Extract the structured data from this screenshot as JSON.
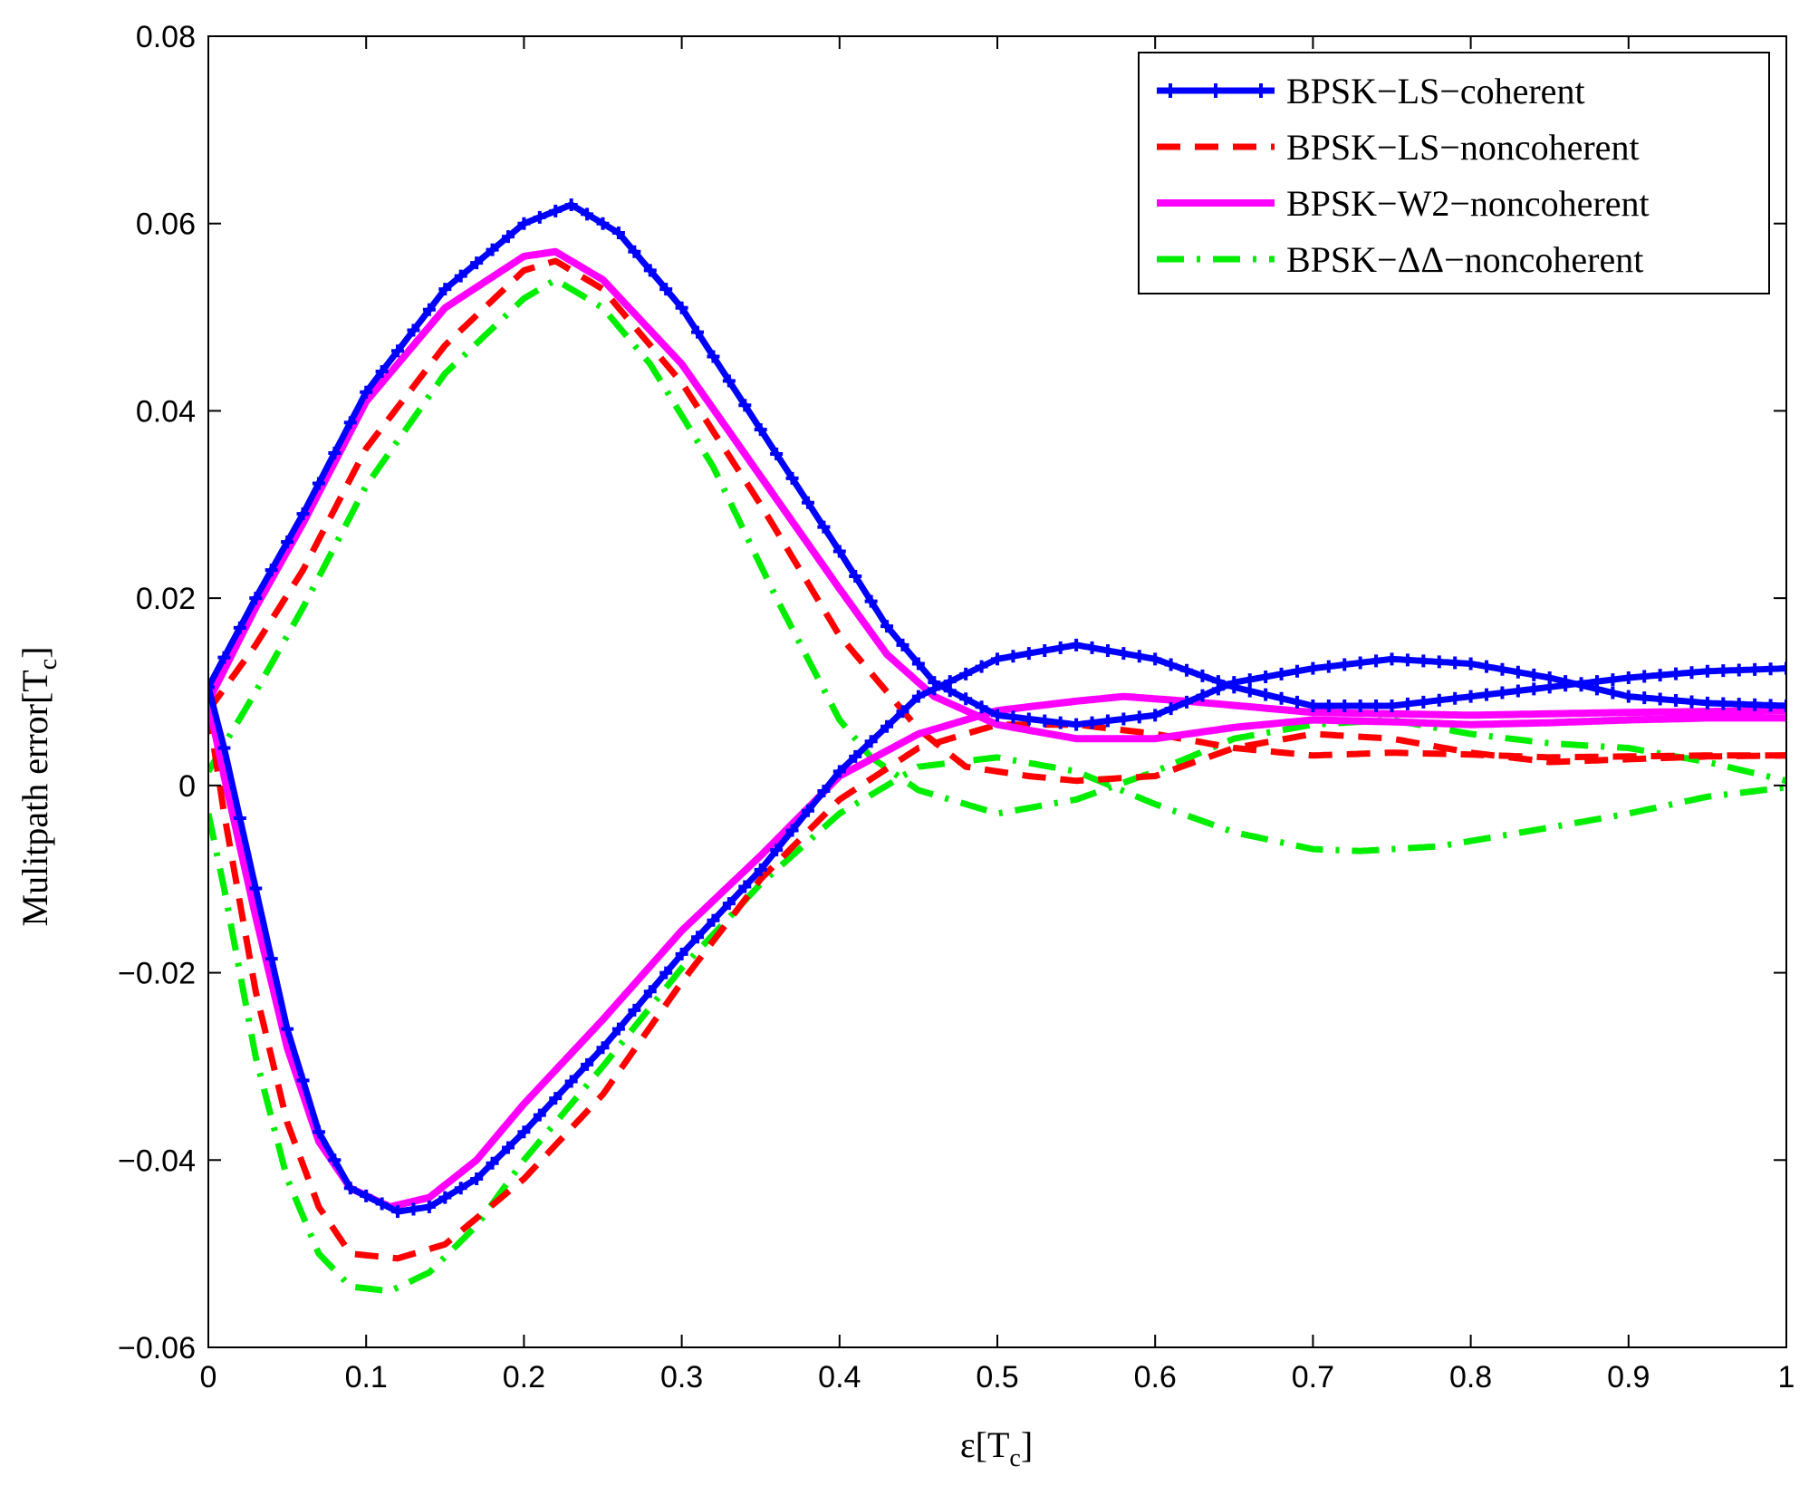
{
  "chart_data": {
    "type": "line",
    "title": "",
    "xlabel": "ε[T_c]",
    "xlabel_main": "ε[T",
    "xlabel_sub": "c",
    "xlabel_close": "]",
    "ylabel": "Mulitpath error[T_c]",
    "ylabel_main": "Mulitpath error[T",
    "ylabel_sub": "c",
    "ylabel_close": "]",
    "xlim": [
      0,
      1
    ],
    "ylim": [
      -0.06,
      0.08
    ],
    "x_ticks": [
      0,
      0.1,
      0.2,
      0.3,
      0.4,
      0.5,
      0.6,
      0.7,
      0.8,
      0.9,
      1
    ],
    "x_tick_labels": [
      "0",
      "0.1",
      "0.2",
      "0.3",
      "0.4",
      "0.5",
      "0.6",
      "0.7",
      "0.8",
      "0.9",
      "1"
    ],
    "y_ticks": [
      -0.06,
      -0.04,
      -0.02,
      0,
      0.02,
      0.04,
      0.06,
      0.08
    ],
    "y_tick_labels": [
      "−0.06",
      "−0.04",
      "−0.02",
      "0",
      "0.02",
      "0.04",
      "0.06",
      "0.08"
    ],
    "grid": false,
    "legend_position": "top-right",
    "series": [
      {
        "name": "BPSK−LS−coherent",
        "color": "#0000ff",
        "style": "solid-plus",
        "upper": [
          [
            0,
            0.0105
          ],
          [
            0.03,
            0.02
          ],
          [
            0.06,
            0.029
          ],
          [
            0.1,
            0.042
          ],
          [
            0.15,
            0.053
          ],
          [
            0.2,
            0.06
          ],
          [
            0.23,
            0.062
          ],
          [
            0.26,
            0.059
          ],
          [
            0.3,
            0.051
          ],
          [
            0.35,
            0.038
          ],
          [
            0.4,
            0.025
          ],
          [
            0.43,
            0.017
          ],
          [
            0.46,
            0.011
          ],
          [
            0.5,
            0.0075
          ],
          [
            0.55,
            0.0065
          ],
          [
            0.6,
            0.0075
          ],
          [
            0.65,
            0.011
          ],
          [
            0.7,
            0.0125
          ],
          [
            0.75,
            0.0135
          ],
          [
            0.8,
            0.013
          ],
          [
            0.85,
            0.0115
          ],
          [
            0.9,
            0.0095
          ],
          [
            0.95,
            0.0088
          ],
          [
            1,
            0.0085
          ]
        ],
        "lower": [
          [
            0,
            0.0105
          ],
          [
            0.01,
            0.004
          ],
          [
            0.03,
            -0.011
          ],
          [
            0.05,
            -0.026
          ],
          [
            0.07,
            -0.037
          ],
          [
            0.09,
            -0.043
          ],
          [
            0.12,
            -0.0455
          ],
          [
            0.14,
            -0.045
          ],
          [
            0.17,
            -0.042
          ],
          [
            0.2,
            -0.037
          ],
          [
            0.25,
            -0.028
          ],
          [
            0.3,
            -0.018
          ],
          [
            0.35,
            -0.009
          ],
          [
            0.4,
            0.0015
          ],
          [
            0.45,
            0.0095
          ],
          [
            0.5,
            0.0135
          ],
          [
            0.55,
            0.015
          ],
          [
            0.6,
            0.0135
          ],
          [
            0.65,
            0.0105
          ],
          [
            0.7,
            0.0085
          ],
          [
            0.75,
            0.0085
          ],
          [
            0.8,
            0.0095
          ],
          [
            0.85,
            0.0105
          ],
          [
            0.9,
            0.0115
          ],
          [
            0.95,
            0.0122
          ],
          [
            1,
            0.0125
          ]
        ]
      },
      {
        "name": "BPSK−LS−noncoherent",
        "color": "#ff0000",
        "style": "dashed",
        "upper": [
          [
            0,
            0.008
          ],
          [
            0.03,
            0.015
          ],
          [
            0.06,
            0.023
          ],
          [
            0.1,
            0.036
          ],
          [
            0.15,
            0.047
          ],
          [
            0.2,
            0.055
          ],
          [
            0.22,
            0.056
          ],
          [
            0.25,
            0.053
          ],
          [
            0.3,
            0.043
          ],
          [
            0.35,
            0.03
          ],
          [
            0.4,
            0.016
          ],
          [
            0.45,
            0.006
          ],
          [
            0.48,
            0.002
          ],
          [
            0.52,
            0.001
          ],
          [
            0.55,
            0.0005
          ],
          [
            0.6,
            0.001
          ],
          [
            0.65,
            0.004
          ],
          [
            0.7,
            0.0055
          ],
          [
            0.75,
            0.005
          ],
          [
            0.8,
            0.0035
          ],
          [
            0.85,
            0.0025
          ],
          [
            0.9,
            0.0028
          ],
          [
            0.95,
            0.0031
          ],
          [
            1,
            0.0032
          ]
        ],
        "lower": [
          [
            0,
            0.008
          ],
          [
            0.01,
            -0.003
          ],
          [
            0.03,
            -0.022
          ],
          [
            0.05,
            -0.036
          ],
          [
            0.07,
            -0.045
          ],
          [
            0.09,
            -0.05
          ],
          [
            0.12,
            -0.0505
          ],
          [
            0.15,
            -0.049
          ],
          [
            0.2,
            -0.042
          ],
          [
            0.25,
            -0.033
          ],
          [
            0.3,
            -0.021
          ],
          [
            0.35,
            -0.01
          ],
          [
            0.4,
            -0.0015
          ],
          [
            0.45,
            0.004
          ],
          [
            0.5,
            0.0065
          ],
          [
            0.55,
            0.0065
          ],
          [
            0.6,
            0.0055
          ],
          [
            0.65,
            0.004
          ],
          [
            0.7,
            0.0032
          ],
          [
            0.75,
            0.0035
          ],
          [
            0.8,
            0.0033
          ],
          [
            0.85,
            0.003
          ],
          [
            0.9,
            0.0031
          ],
          [
            0.95,
            0.0032
          ],
          [
            1,
            0.0032
          ]
        ]
      },
      {
        "name": "BPSK−W2−noncoherent",
        "color": "#ff00ff",
        "style": "solid",
        "upper": [
          [
            0,
            0.009
          ],
          [
            0.03,
            0.019
          ],
          [
            0.06,
            0.028
          ],
          [
            0.1,
            0.041
          ],
          [
            0.15,
            0.051
          ],
          [
            0.2,
            0.0565
          ],
          [
            0.22,
            0.057
          ],
          [
            0.25,
            0.054
          ],
          [
            0.3,
            0.045
          ],
          [
            0.35,
            0.033
          ],
          [
            0.4,
            0.021
          ],
          [
            0.43,
            0.014
          ],
          [
            0.46,
            0.0095
          ],
          [
            0.5,
            0.0065
          ],
          [
            0.55,
            0.005
          ],
          [
            0.6,
            0.005
          ],
          [
            0.65,
            0.0062
          ],
          [
            0.7,
            0.007
          ],
          [
            0.75,
            0.0068
          ],
          [
            0.8,
            0.0065
          ],
          [
            0.85,
            0.0067
          ],
          [
            0.9,
            0.007
          ],
          [
            0.95,
            0.0072
          ],
          [
            1,
            0.0072
          ]
        ],
        "lower": [
          [
            0,
            0.009
          ],
          [
            0.01,
            0.001
          ],
          [
            0.03,
            -0.014
          ],
          [
            0.05,
            -0.028
          ],
          [
            0.07,
            -0.038
          ],
          [
            0.09,
            -0.043
          ],
          [
            0.115,
            -0.045
          ],
          [
            0.14,
            -0.044
          ],
          [
            0.17,
            -0.04
          ],
          [
            0.2,
            -0.034
          ],
          [
            0.25,
            -0.025
          ],
          [
            0.3,
            -0.0155
          ],
          [
            0.35,
            -0.0075
          ],
          [
            0.4,
            0.001
          ],
          [
            0.45,
            0.0055
          ],
          [
            0.5,
            0.008
          ],
          [
            0.55,
            0.009
          ],
          [
            0.58,
            0.0095
          ],
          [
            0.62,
            0.009
          ],
          [
            0.7,
            0.0078
          ],
          [
            0.8,
            0.0075
          ],
          [
            0.9,
            0.0078
          ],
          [
            1,
            0.008
          ]
        ]
      },
      {
        "name": "BPSK−ΔΔ−noncoherent",
        "color": "#00ee00",
        "style": "dashdot",
        "upper": [
          [
            0,
            0.0015
          ],
          [
            0.03,
            0.01
          ],
          [
            0.06,
            0.019
          ],
          [
            0.1,
            0.032
          ],
          [
            0.15,
            0.044
          ],
          [
            0.2,
            0.052
          ],
          [
            0.22,
            0.054
          ],
          [
            0.25,
            0.051
          ],
          [
            0.28,
            0.045
          ],
          [
            0.32,
            0.034
          ],
          [
            0.36,
            0.02
          ],
          [
            0.4,
            0.007
          ],
          [
            0.42,
            0.003
          ],
          [
            0.45,
            -0.0005
          ],
          [
            0.5,
            -0.003
          ],
          [
            0.55,
            -0.0015
          ],
          [
            0.6,
            0.0015
          ],
          [
            0.65,
            0.005
          ],
          [
            0.7,
            0.0065
          ],
          [
            0.75,
            0.007
          ],
          [
            0.8,
            0.0055
          ],
          [
            0.85,
            0.0045
          ],
          [
            0.9,
            0.004
          ],
          [
            0.95,
            0.0025
          ],
          [
            1,
            0.0005
          ]
        ],
        "lower": [
          [
            0,
            -0.003
          ],
          [
            0.01,
            -0.011
          ],
          [
            0.03,
            -0.029
          ],
          [
            0.05,
            -0.042
          ],
          [
            0.07,
            -0.05
          ],
          [
            0.09,
            -0.0535
          ],
          [
            0.115,
            -0.054
          ],
          [
            0.14,
            -0.052
          ],
          [
            0.17,
            -0.047
          ],
          [
            0.2,
            -0.04
          ],
          [
            0.25,
            -0.03
          ],
          [
            0.3,
            -0.0195
          ],
          [
            0.35,
            -0.0105
          ],
          [
            0.4,
            -0.003
          ],
          [
            0.45,
            0.002
          ],
          [
            0.5,
            0.003
          ],
          [
            0.55,
            0.0015
          ],
          [
            0.6,
            -0.002
          ],
          [
            0.65,
            -0.005
          ],
          [
            0.7,
            -0.0068
          ],
          [
            0.73,
            -0.007
          ],
          [
            0.78,
            -0.0065
          ],
          [
            0.85,
            -0.0045
          ],
          [
            0.9,
            -0.003
          ],
          [
            0.95,
            -0.0012
          ],
          [
            1,
            -0.0002
          ]
        ]
      }
    ]
  }
}
